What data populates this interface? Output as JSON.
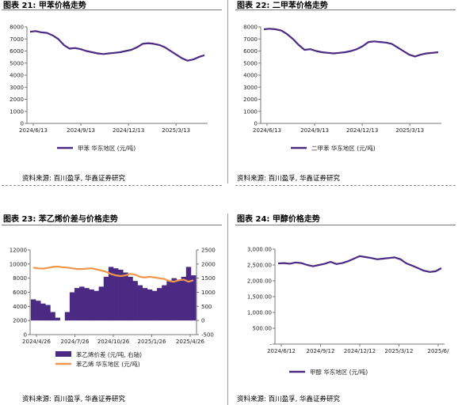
{
  "panels": [
    {
      "title": "图表 21:  甲苯价格走势",
      "source": "资料来源:  百川盈孚,  华鑫证券研究"
    },
    {
      "title": "图表 22:  二甲苯价格走势",
      "source": "资料来源:  百川盈孚,  华鑫证券研究"
    },
    {
      "title": "图表 23:  苯乙烯价差与价格走势",
      "source": "资料来源:  百川盈孚,  华鑫证券研究"
    },
    {
      "title": "图表 24:  甲醇价格走势",
      "source": "资料来源:  百川盈孚,  华鑫证券研究"
    }
  ],
  "chart_data": [
    {
      "type": "line",
      "xlabels": [
        "2024/6/13",
        "2024/9/13",
        "2024/12/13",
        "2025/3/13"
      ],
      "ylim": [
        0,
        8000
      ],
      "yticks": [
        0,
        1000,
        2000,
        3000,
        4000,
        5000,
        6000,
        7000,
        8000
      ],
      "series": [
        {
          "name": "甲苯 华东地区 (元/吨)",
          "color": "#4b2a84",
          "values": [
            7600,
            7650,
            7550,
            7500,
            7300,
            7000,
            6500,
            6200,
            6250,
            6150,
            6000,
            5900,
            5800,
            5750,
            5800,
            5850,
            5900,
            6000,
            6100,
            6300,
            6600,
            6650,
            6600,
            6500,
            6300,
            6000,
            5700,
            5400,
            5200,
            5300,
            5500,
            5650
          ]
        }
      ],
      "legend": "bottom",
      "grid": false
    },
    {
      "type": "line",
      "xlabels": [
        "2024/6/13",
        "2024/9/13",
        "2024/12/13",
        "2025/3/13"
      ],
      "ylim": [
        0,
        8000
      ],
      "yticks": [
        0,
        1000,
        2000,
        3000,
        4000,
        5000,
        6000,
        7000,
        8000
      ],
      "series": [
        {
          "name": "二甲苯 华东地区 (元/吨)",
          "color": "#4b2a84",
          "values": [
            7800,
            7850,
            7800,
            7700,
            7400,
            7000,
            6500,
            6100,
            6150,
            6000,
            5900,
            5850,
            5800,
            5850,
            5900,
            6000,
            6150,
            6400,
            6750,
            6800,
            6750,
            6700,
            6600,
            6300,
            6000,
            5700,
            5550,
            5700,
            5800,
            5850,
            5900
          ]
        }
      ],
      "legend": "bottom",
      "grid": false
    },
    {
      "type": "bar+line",
      "xlabels": [
        "2024/4/26",
        "2024/7/26",
        "2024/10/26",
        "2025/1/26",
        "2025/4/26"
      ],
      "ylim_left": [
        0,
        12000
      ],
      "yticks_left": [
        0,
        2000,
        4000,
        6000,
        8000,
        10000,
        12000
      ],
      "ylim_right": [
        -500,
        2500
      ],
      "yticks_right": [
        -500,
        0,
        500,
        1000,
        1500,
        2000,
        2500
      ],
      "series": [
        {
          "name": "苯乙烯价差 (元/吨, 右轴)",
          "type": "area",
          "axis": "right",
          "color": "#4b2a84",
          "values": [
            750,
            700,
            600,
            550,
            300,
            100,
            0,
            300,
            1000,
            1150,
            1200,
            1150,
            1100,
            1050,
            1200,
            1550,
            1900,
            1850,
            1800,
            1700,
            1550,
            1400,
            1250,
            1150,
            1100,
            1050,
            1150,
            1250,
            1400,
            1500,
            1450,
            1550,
            1900,
            1600
          ]
        },
        {
          "name": "苯乙烯 华东地区 (元/吨)",
          "type": "line",
          "axis": "left",
          "color": "#f0964a",
          "values": [
            9500,
            9400,
            9350,
            9450,
            9600,
            9650,
            9550,
            9500,
            9400,
            9300,
            9300,
            9350,
            9400,
            9250,
            9100,
            8900,
            8600,
            8400,
            8300,
            8400,
            8600,
            8500,
            8200,
            8100,
            8200,
            8100,
            8000,
            7900,
            7600,
            7500,
            7700,
            7800,
            7500,
            7700
          ]
        }
      ],
      "legend": "bottom",
      "grid": false
    },
    {
      "type": "line",
      "xlabels": [
        "2024/6/12",
        "2024/9/12",
        "2024/12/12",
        "2025/3/12",
        "2025/6/"
      ],
      "ylim": [
        0,
        3000
      ],
      "yticks": [
        "-",
        "500.00",
        "1,000.00",
        "1,500.00",
        "2,000.00",
        "2,500.00",
        "3,000.00"
      ],
      "series": [
        {
          "name": "甲醇 华东地区 (元/吨)",
          "color": "#4b2a84",
          "values": [
            2550,
            2560,
            2540,
            2580,
            2560,
            2500,
            2460,
            2500,
            2540,
            2600,
            2530,
            2560,
            2620,
            2700,
            2780,
            2750,
            2720,
            2680,
            2700,
            2720,
            2740,
            2680,
            2550,
            2480,
            2400,
            2320,
            2280,
            2300,
            2400
          ]
        }
      ],
      "legend": "bottom",
      "grid": false
    }
  ]
}
